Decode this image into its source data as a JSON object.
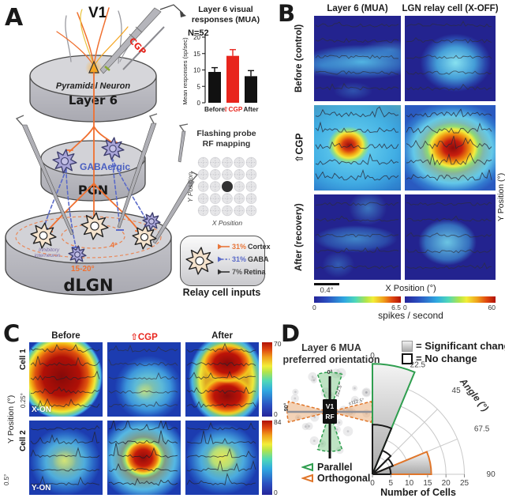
{
  "panels": {
    "A": {
      "label": "A",
      "v1": "V1",
      "cgp": "CGP",
      "pyramidal": "Pyramidal Neuron",
      "layer6": "Layer 6",
      "gabaergic": "GABAergic",
      "pgn": "PGN",
      "dlgn": "dLGN",
      "inner_deg": "4°",
      "outer_deg": "15-20°",
      "interneuron_l1": "Inhibitory",
      "interneuron_l2": "interneuron",
      "rf_mapping": {
        "title_l1": "Flashing probe",
        "title_l2": "RF mapping",
        "x_label": "X Position",
        "y_label": "Y Position",
        "grid_rows": 5,
        "grid_cols": 5,
        "filled_cell": [
          2,
          2
        ]
      },
      "inputs_legend": {
        "rows": [
          {
            "pct": "31%",
            "label": "Cortex",
            "color": "#e8763a",
            "style": "solid"
          },
          {
            "pct": "31%",
            "label": "GABA",
            "color": "#5a6ac8",
            "style": "dashed"
          },
          {
            "pct": "7%",
            "label": "Retina",
            "color": "#333333",
            "style": "solid"
          }
        ],
        "caption": "Relay cell inputs"
      }
    },
    "B": {
      "label": "B",
      "col_headers": [
        "Layer 6 (MUA)",
        "LGN relay cell (X-OFF)"
      ],
      "row_labels": [
        "Before (control)",
        "⇧CGP",
        "After (recovery)"
      ],
      "y_axis": "Y Position (°)",
      "x_axis": "X Position (°)",
      "scalebar": "0.4°",
      "colorbar_left": {
        "min": "0",
        "max": "6.5"
      },
      "colorbar_right": {
        "min": "0",
        "max": "60"
      },
      "colorbar_label": "spikes / second"
    },
    "C": {
      "label": "C",
      "col_headers": [
        "Before",
        "⇧CGP",
        "After"
      ],
      "row1": {
        "cell": "Cell 1",
        "type": "X-ON",
        "scale": "0.25°",
        "cb_max": "70",
        "cb_min": "0"
      },
      "row2": {
        "cell": "Cell 2",
        "type": "Y-ON",
        "scale": "0.5°",
        "cb_max": "84",
        "cb_min": "0"
      },
      "y_axis": "Y Position (°)"
    },
    "D": {
      "label": "D",
      "title_l1": "Layer 6 MUA",
      "title_l2": "preferred orientation",
      "legend_sig": "= Significant change",
      "legend_no": "= No change",
      "diagram": {
        "deg0": "0°",
        "deg90": "90°",
        "green_edge": "±22.5°",
        "orange_edge": "±112.5°",
        "v1": "V1",
        "rf": "RF"
      },
      "parallel": "Parallel",
      "orthogonal": "Orthogonal"
    }
  },
  "chart_data": [
    {
      "type": "bar",
      "title_l1": "Layer 6 visual",
      "title_l2": "responses (MUA)",
      "n_label": "N=52",
      "ylabel": "Mean responses (sp/sec)",
      "ylim": [
        0,
        20
      ],
      "yticks": [
        0,
        5,
        10,
        15,
        20
      ],
      "categories": [
        "Before",
        "⇧CGP",
        "After"
      ],
      "values": [
        9.4,
        14.3,
        8.1
      ],
      "errors": [
        1.3,
        1.9,
        1.7
      ],
      "bar_colors": [
        "#111111",
        "#e8251d",
        "#111111"
      ],
      "tick_colors": [
        "#222222",
        "#e8251d",
        "#222222"
      ]
    },
    {
      "type": "polar-wedge",
      "angle_label": "Angle (°)",
      "xlabel": "Number of Cells",
      "r_ticks": [
        0,
        5,
        10,
        15,
        20,
        25
      ],
      "angle_ticks": [
        0,
        22.5,
        45,
        67.5,
        90
      ],
      "significant": [
        {
          "from": 0,
          "to": 22.5,
          "cells": 30,
          "group": "parallel",
          "color": "#2f9e4f"
        },
        {
          "from": 67.5,
          "to": 90,
          "cells": 16,
          "group": "orthogonal",
          "color": "#e0762a"
        }
      ],
      "no_change": [
        {
          "from": 0,
          "to": 22.5,
          "cells": 13.5
        },
        {
          "from": 22.5,
          "to": 45,
          "cells": 7
        },
        {
          "from": 45,
          "to": 67.5,
          "cells": 6
        },
        {
          "from": 67.5,
          "to": 90,
          "cells": 5
        }
      ]
    },
    {
      "type": "heatmap",
      "panel": "B",
      "rows": [
        "Before (control)",
        "⇧CGP",
        "After (recovery)"
      ],
      "cols": [
        "Layer 6 (MUA)",
        "LGN relay cell (X-OFF)"
      ],
      "colorbar": {
        "left_range": [
          0,
          6.5
        ],
        "right_range": [
          0,
          60
        ],
        "unit": "spikes / second"
      },
      "peak_relative": [
        [
          0.45,
          0.55
        ],
        [
          1.0,
          1.0
        ],
        [
          0.3,
          0.45
        ]
      ]
    },
    {
      "type": "heatmap",
      "panel": "C",
      "rows": [
        "Cell 1 (X-ON)",
        "Cell 2 (Y-ON)"
      ],
      "cols": [
        "Before",
        "⇧CGP",
        "After"
      ],
      "colorbar": {
        "row1_range": [
          0,
          70
        ],
        "row2_range": [
          0,
          84
        ],
        "unit": "spikes / second"
      },
      "scale_bars": [
        "0.25°",
        "0.5°"
      ],
      "peak_relative": [
        [
          1.0,
          0.35,
          1.0
        ],
        [
          0.55,
          1.0,
          0.6
        ]
      ]
    }
  ]
}
